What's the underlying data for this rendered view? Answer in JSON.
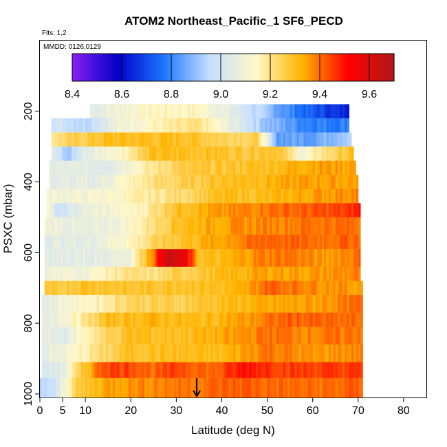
{
  "chart_data": {
    "type": "heatmap",
    "title": "ATOM2 Northeast_Pacific_1 SF6_PECD",
    "flights_label": "Flts: 1,2",
    "dates_label": "MMDD: 0126,0129",
    "xlabel": "Latitude (deg N)",
    "ylabel": "PSXC (mbar)",
    "xlim": [
      0,
      85
    ],
    "ylim": [
      1010,
      0
    ],
    "x_ticks": [
      0,
      5,
      10,
      20,
      30,
      40,
      50,
      60,
      70,
      80
    ],
    "y_ticks": [
      200,
      400,
      600,
      800,
      1000
    ],
    "colorbar": {
      "min": 8.4,
      "max": 9.7,
      "ticks": [
        8.4,
        8.6,
        8.8,
        9.0,
        9.2,
        9.4,
        9.6
      ],
      "tick_labels": [
        "8.4",
        "8.6",
        "8.8",
        "9.0",
        "9.2",
        "9.4",
        "9.6"
      ],
      "colors": [
        "#8b1ff0",
        "#0000c8",
        "#1e78ff",
        "#c8e0ff",
        "#fff8c8",
        "#ffb400",
        "#ff0000",
        "#b01818"
      ]
    },
    "arrow_marker_latitude": 34.5,
    "bands": [
      {
        "p_top": 180,
        "p_bot": 220,
        "x_start": 11,
        "x_end": 68,
        "knots": [
          [
            11,
            9.05
          ],
          [
            25,
            9.15
          ],
          [
            35,
            9.15
          ],
          [
            42,
            9.05
          ],
          [
            50,
            8.9
          ],
          [
            58,
            8.75
          ],
          [
            66,
            8.65
          ],
          [
            68,
            8.65
          ]
        ]
      },
      {
        "p_top": 220,
        "p_bot": 260,
        "x_start": 2.5,
        "x_end": 68,
        "knots": [
          [
            2.5,
            9.0
          ],
          [
            10,
            8.95
          ],
          [
            18,
            9.1
          ],
          [
            25,
            9.15
          ],
          [
            35,
            9.2
          ],
          [
            43,
            9.05
          ],
          [
            50,
            8.9
          ],
          [
            58,
            8.8
          ],
          [
            66,
            8.78
          ],
          [
            68,
            8.8
          ]
        ]
      },
      {
        "p_top": 260,
        "p_bot": 300,
        "x_start": 2.5,
        "x_end": 68.5,
        "knots": [
          [
            2.5,
            9.2
          ],
          [
            8,
            9.25
          ],
          [
            15,
            9.3
          ],
          [
            25,
            9.3
          ],
          [
            32,
            9.3
          ],
          [
            40,
            9.25
          ],
          [
            48,
            9.25
          ],
          [
            52,
            8.85
          ],
          [
            60,
            8.85
          ],
          [
            68.5,
            8.95
          ]
        ]
      },
      {
        "p_top": 300,
        "p_bot": 340,
        "x_start": 2.5,
        "x_end": 69,
        "knots": [
          [
            2.5,
            9.05
          ],
          [
            6,
            8.9
          ],
          [
            10,
            9.05
          ],
          [
            18,
            9.15
          ],
          [
            25,
            9.3
          ],
          [
            35,
            9.3
          ],
          [
            45,
            9.28
          ],
          [
            52,
            9.3
          ],
          [
            58,
            9.1
          ],
          [
            62,
            9.2
          ],
          [
            69,
            9.3
          ]
        ]
      },
      {
        "p_top": 340,
        "p_bot": 380,
        "x_start": 2,
        "x_end": 69.5,
        "knots": [
          [
            2,
            9.05
          ],
          [
            15,
            9.05
          ],
          [
            22,
            9.15
          ],
          [
            30,
            9.25
          ],
          [
            40,
            9.28
          ],
          [
            50,
            9.3
          ],
          [
            60,
            9.35
          ],
          [
            69.5,
            9.35
          ]
        ]
      },
      {
        "p_top": 380,
        "p_bot": 420,
        "x_start": 2,
        "x_end": 70,
        "knots": [
          [
            2,
            9.05
          ],
          [
            12,
            9.05
          ],
          [
            20,
            9.15
          ],
          [
            26,
            9.22
          ],
          [
            32,
            9.25
          ],
          [
            40,
            9.3
          ],
          [
            50,
            9.32
          ],
          [
            60,
            9.35
          ],
          [
            70,
            9.35
          ]
        ]
      },
      {
        "p_top": 420,
        "p_bot": 460,
        "x_start": 1.5,
        "x_end": 70,
        "knots": [
          [
            1.5,
            9.1
          ],
          [
            10,
            9.1
          ],
          [
            20,
            9.15
          ],
          [
            30,
            9.22
          ],
          [
            40,
            9.3
          ],
          [
            50,
            9.3
          ],
          [
            60,
            9.35
          ],
          [
            70,
            9.38
          ]
        ]
      },
      {
        "p_top": 460,
        "p_bot": 500,
        "x_start": 1.5,
        "x_end": 70.5,
        "knots": [
          [
            1.5,
            9.15
          ],
          [
            4,
            8.95
          ],
          [
            8,
            9.05
          ],
          [
            15,
            9.1
          ],
          [
            22,
            9.15
          ],
          [
            30,
            9.3
          ],
          [
            40,
            9.35
          ],
          [
            50,
            9.4
          ],
          [
            60,
            9.42
          ],
          [
            68,
            9.45
          ],
          [
            70.5,
            9.5
          ]
        ]
      },
      {
        "p_top": 500,
        "p_bot": 550,
        "x_start": 1,
        "x_end": 70.5,
        "knots": [
          [
            1,
            9.1
          ],
          [
            10,
            9.05
          ],
          [
            18,
            9.1
          ],
          [
            24,
            9.2
          ],
          [
            30,
            9.3
          ],
          [
            40,
            9.35
          ],
          [
            50,
            9.38
          ],
          [
            60,
            9.4
          ],
          [
            70.5,
            9.4
          ]
        ]
      },
      {
        "p_top": 550,
        "p_bot": 590,
        "x_start": 1,
        "x_end": 70.5,
        "knots": [
          [
            1,
            9.05
          ],
          [
            10,
            9.05
          ],
          [
            20,
            9.15
          ],
          [
            26,
            9.25
          ],
          [
            32,
            9.3
          ],
          [
            40,
            9.35
          ],
          [
            50,
            9.42
          ],
          [
            60,
            9.4
          ],
          [
            70.5,
            9.42
          ]
        ]
      },
      {
        "p_top": 590,
        "p_bot": 640,
        "x_start": 1,
        "x_end": 70.5,
        "knots": [
          [
            1,
            9.05
          ],
          [
            12,
            9.05
          ],
          [
            20,
            9.1
          ],
          [
            25,
            9.4
          ],
          [
            28,
            9.65
          ],
          [
            32,
            9.55
          ],
          [
            35,
            9.3
          ],
          [
            40,
            9.3
          ],
          [
            48,
            9.38
          ],
          [
            55,
            9.4
          ],
          [
            62,
            9.35
          ],
          [
            70.5,
            9.4
          ]
        ]
      },
      {
        "p_top": 640,
        "p_bot": 680,
        "x_start": 1,
        "x_end": 70.5,
        "knots": [
          [
            1,
            9.1
          ],
          [
            10,
            9.1
          ],
          [
            18,
            9.2
          ],
          [
            25,
            9.2
          ],
          [
            30,
            9.25
          ],
          [
            40,
            9.3
          ],
          [
            50,
            9.35
          ],
          [
            60,
            9.35
          ],
          [
            70.5,
            9.38
          ]
        ]
      },
      {
        "p_top": 680,
        "p_bot": 720,
        "x_start": 1,
        "x_end": 71,
        "knots": [
          [
            1,
            9.25
          ],
          [
            10,
            9.3
          ],
          [
            20,
            9.28
          ],
          [
            30,
            9.3
          ],
          [
            40,
            9.3
          ],
          [
            45,
            9.32
          ],
          [
            50,
            9.42
          ],
          [
            60,
            9.38
          ],
          [
            71,
            9.35
          ]
        ]
      },
      {
        "p_top": 720,
        "p_bot": 770,
        "x_start": 0.5,
        "x_end": 71,
        "knots": [
          [
            0.5,
            9.05
          ],
          [
            5,
            9.1
          ],
          [
            12,
            9.15
          ],
          [
            20,
            9.25
          ],
          [
            30,
            9.25
          ],
          [
            40,
            9.3
          ],
          [
            50,
            9.33
          ],
          [
            60,
            9.35
          ],
          [
            71,
            9.4
          ]
        ]
      },
      {
        "p_top": 770,
        "p_bot": 810,
        "x_start": 0.5,
        "x_end": 71,
        "knots": [
          [
            0.5,
            9.05
          ],
          [
            8,
            9.15
          ],
          [
            15,
            9.3
          ],
          [
            25,
            9.32
          ],
          [
            35,
            9.3
          ],
          [
            45,
            9.35
          ],
          [
            55,
            9.42
          ],
          [
            65,
            9.4
          ],
          [
            71,
            9.4
          ]
        ]
      },
      {
        "p_top": 810,
        "p_bot": 860,
        "x_start": 0.5,
        "x_end": 71,
        "knots": [
          [
            0.5,
            9.05
          ],
          [
            6,
            9.05
          ],
          [
            12,
            9.2
          ],
          [
            20,
            9.3
          ],
          [
            30,
            9.3
          ],
          [
            40,
            9.33
          ],
          [
            50,
            9.4
          ],
          [
            60,
            9.38
          ],
          [
            71,
            9.4
          ]
        ]
      },
      {
        "p_top": 860,
        "p_bot": 910,
        "x_start": 0.5,
        "x_end": 71,
        "knots": [
          [
            0.5,
            9.05
          ],
          [
            6,
            9.1
          ],
          [
            12,
            9.2
          ],
          [
            20,
            9.3
          ],
          [
            30,
            9.3
          ],
          [
            40,
            9.3
          ],
          [
            50,
            9.4
          ],
          [
            60,
            9.35
          ],
          [
            71,
            9.38
          ]
        ]
      },
      {
        "p_top": 910,
        "p_bot": 955,
        "x_start": 0.5,
        "x_end": 71,
        "knots": [
          [
            0.5,
            9.0
          ],
          [
            5,
            9.05
          ],
          [
            9,
            9.25
          ],
          [
            14,
            9.45
          ],
          [
            20,
            9.45
          ],
          [
            25,
            9.4
          ],
          [
            30,
            9.45
          ],
          [
            38,
            9.4
          ],
          [
            45,
            9.5
          ],
          [
            55,
            9.45
          ],
          [
            62,
            9.45
          ],
          [
            71,
            9.45
          ]
        ]
      },
      {
        "p_top": 955,
        "p_bot": 1010,
        "x_start": 0,
        "x_end": 71,
        "knots": [
          [
            0,
            8.95
          ],
          [
            3,
            8.95
          ],
          [
            5,
            9.1
          ],
          [
            8,
            9.25
          ],
          [
            15,
            9.35
          ],
          [
            25,
            9.38
          ],
          [
            35,
            9.4
          ],
          [
            45,
            9.42
          ],
          [
            55,
            9.4
          ],
          [
            65,
            9.4
          ],
          [
            71,
            9.42
          ]
        ]
      }
    ]
  }
}
